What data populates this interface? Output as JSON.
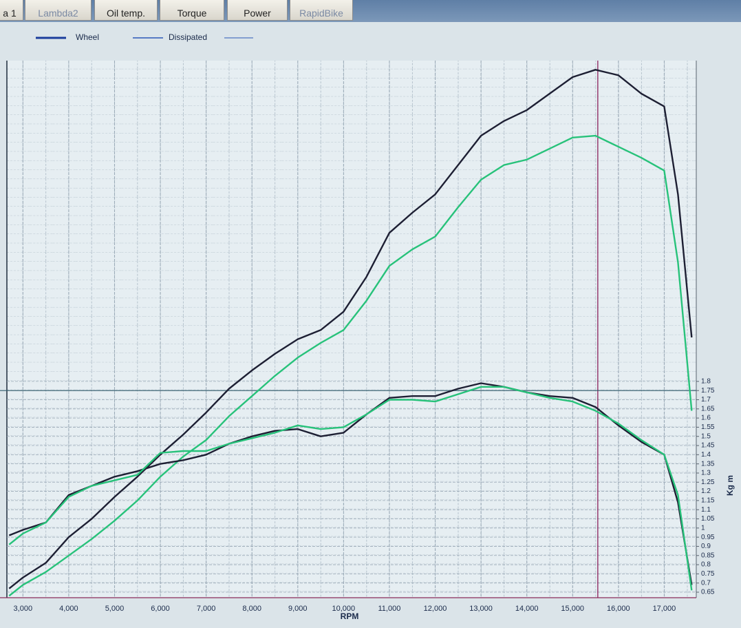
{
  "tabs": [
    "a 1",
    "Lambda2",
    "Oil temp.",
    "Torque",
    "Power",
    "RapidBike"
  ],
  "legend": [
    {
      "label": "Wheel",
      "color": "#1b3d9c"
    },
    {
      "label": "Dissipated",
      "color": "#2a57b8"
    }
  ],
  "chart_data": {
    "type": "line",
    "xlabel": "RPM",
    "ylabel": "Kg m",
    "x": [
      2700,
      3000,
      3500,
      4000,
      4500,
      5000,
      5500,
      6000,
      6500,
      7000,
      7500,
      8000,
      8500,
      9000,
      9500,
      10000,
      10500,
      11000,
      11500,
      12000,
      12500,
      13000,
      13500,
      14000,
      14500,
      15000,
      15500,
      16000,
      16500,
      17000,
      17300,
      17600
    ],
    "series": [
      {
        "color": "#1d1f33",
        "values": [
          0.67,
          0.73,
          0.81,
          0.95,
          1.05,
          1.17,
          1.28,
          1.4,
          1.51,
          1.63,
          1.76,
          1.86,
          1.95,
          2.03,
          2.08,
          2.18,
          2.37,
          2.61,
          2.72,
          2.82,
          2.98,
          3.14,
          3.22,
          3.28,
          3.37,
          3.46,
          3.5,
          3.47,
          3.37,
          3.3,
          2.82,
          2.04
        ]
      },
      {
        "color": "#27c27a",
        "values": [
          0.63,
          0.69,
          0.76,
          0.85,
          0.94,
          1.04,
          1.15,
          1.28,
          1.39,
          1.48,
          1.61,
          1.72,
          1.83,
          1.93,
          2.01,
          2.08,
          2.24,
          2.43,
          2.52,
          2.59,
          2.75,
          2.9,
          2.98,
          3.01,
          3.07,
          3.13,
          3.14,
          3.08,
          3.02,
          2.95,
          2.45,
          1.64
        ]
      },
      {
        "color": "#1d1f33",
        "values": [
          0.96,
          0.99,
          1.03,
          1.18,
          1.23,
          1.28,
          1.31,
          1.35,
          1.37,
          1.4,
          1.46,
          1.5,
          1.53,
          1.54,
          1.5,
          1.52,
          1.62,
          1.71,
          1.72,
          1.72,
          1.76,
          1.79,
          1.77,
          1.74,
          1.72,
          1.71,
          1.66,
          1.56,
          1.47,
          1.4,
          1.14,
          0.69
        ]
      },
      {
        "color": "#27c27a",
        "values": [
          0.91,
          0.97,
          1.03,
          1.17,
          1.23,
          1.26,
          1.29,
          1.41,
          1.42,
          1.42,
          1.46,
          1.49,
          1.52,
          1.56,
          1.54,
          1.55,
          1.62,
          1.7,
          1.7,
          1.69,
          1.73,
          1.77,
          1.77,
          1.74,
          1.71,
          1.69,
          1.64,
          1.57,
          1.48,
          1.4,
          1.18,
          0.66
        ]
      }
    ],
    "xlim": [
      2650,
      17700
    ],
    "xticks": [
      {
        "value": 3000,
        "label": "3,000"
      },
      {
        "value": 4000,
        "label": "4,000"
      },
      {
        "value": 5000,
        "label": "5,000"
      },
      {
        "value": 6000,
        "label": "6,000"
      },
      {
        "value": 7000,
        "label": "7,000"
      },
      {
        "value": 8000,
        "label": "8,000"
      },
      {
        "value": 9000,
        "label": "9,000"
      },
      {
        "value": 10000,
        "label": "10,000"
      },
      {
        "value": 11000,
        "label": "11,000"
      },
      {
        "value": 12000,
        "label": "12,000"
      },
      {
        "value": 13000,
        "label": "13,000"
      },
      {
        "value": 14000,
        "label": "14,000"
      },
      {
        "value": 15000,
        "label": "15,000"
      },
      {
        "value": 16000,
        "label": "16,000"
      },
      {
        "value": 17000,
        "label": "17,000"
      }
    ],
    "ylim": [
      0.65,
      3.55
    ],
    "yticks": [
      0.65,
      0.7,
      0.75,
      0.8,
      0.85,
      0.9,
      0.95,
      1,
      1.05,
      1.1,
      1.15,
      1.2,
      1.25,
      1.3,
      1.35,
      1.4,
      1.45,
      1.5,
      1.55,
      1.6,
      1.65,
      1.7,
      1.75,
      1.8
    ],
    "cursor_x": 15550,
    "cursor_y": 1.75,
    "grid": true
  }
}
